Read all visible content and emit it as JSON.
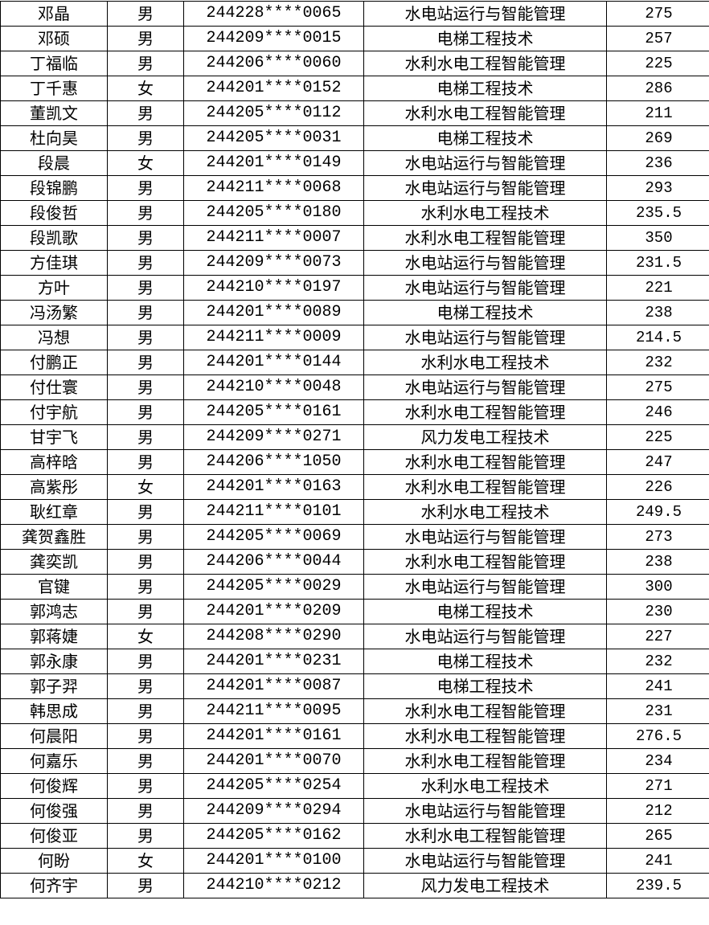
{
  "table": {
    "rows": [
      [
        "邓晶",
        "男",
        "244228****0065",
        "水电站运行与智能管理",
        "275"
      ],
      [
        "邓硕",
        "男",
        "244209****0015",
        "电梯工程技术",
        "257"
      ],
      [
        "丁福临",
        "男",
        "244206****0060",
        "水利水电工程智能管理",
        "225"
      ],
      [
        "丁千惠",
        "女",
        "244201****0152",
        "电梯工程技术",
        "286"
      ],
      [
        "董凯文",
        "男",
        "244205****0112",
        "水利水电工程智能管理",
        "211"
      ],
      [
        "杜向昊",
        "男",
        "244205****0031",
        "电梯工程技术",
        "269"
      ],
      [
        "段晨",
        "女",
        "244201****0149",
        "水电站运行与智能管理",
        "236"
      ],
      [
        "段锦鹏",
        "男",
        "244211****0068",
        "水电站运行与智能管理",
        "293"
      ],
      [
        "段俊哲",
        "男",
        "244205****0180",
        "水利水电工程技术",
        "235.5"
      ],
      [
        "段凯歌",
        "男",
        "244211****0007",
        "水利水电工程智能管理",
        "350"
      ],
      [
        "方佳琪",
        "男",
        "244209****0073",
        "水电站运行与智能管理",
        "231.5"
      ],
      [
        "方叶",
        "男",
        "244210****0197",
        "水电站运行与智能管理",
        "221"
      ],
      [
        "冯汤繁",
        "男",
        "244201****0089",
        "电梯工程技术",
        "238"
      ],
      [
        "冯想",
        "男",
        "244211****0009",
        "水电站运行与智能管理",
        "214.5"
      ],
      [
        "付鹏正",
        "男",
        "244201****0144",
        "水利水电工程技术",
        "232"
      ],
      [
        "付仕寰",
        "男",
        "244210****0048",
        "水电站运行与智能管理",
        "275"
      ],
      [
        "付宇航",
        "男",
        "244205****0161",
        "水利水电工程智能管理",
        "246"
      ],
      [
        "甘宇飞",
        "男",
        "244209****0271",
        "风力发电工程技术",
        "225"
      ],
      [
        "高梓晗",
        "男",
        "244206****1050",
        "水利水电工程智能管理",
        "247"
      ],
      [
        "高紫彤",
        "女",
        "244201****0163",
        "水利水电工程智能管理",
        "226"
      ],
      [
        "耿红章",
        "男",
        "244211****0101",
        "水利水电工程技术",
        "249.5"
      ],
      [
        "龚贺鑫胜",
        "男",
        "244205****0069",
        "水电站运行与智能管理",
        "273"
      ],
      [
        "龚奕凯",
        "男",
        "244206****0044",
        "水利水电工程智能管理",
        "238"
      ],
      [
        "官键",
        "男",
        "244205****0029",
        "水电站运行与智能管理",
        "300"
      ],
      [
        "郭鸿志",
        "男",
        "244201****0209",
        "电梯工程技术",
        "230"
      ],
      [
        "郭蒋婕",
        "女",
        "244208****0290",
        "水电站运行与智能管理",
        "227"
      ],
      [
        "郭永康",
        "男",
        "244201****0231",
        "电梯工程技术",
        "232"
      ],
      [
        "郭子羿",
        "男",
        "244201****0087",
        "电梯工程技术",
        "241"
      ],
      [
        "韩思成",
        "男",
        "244211****0095",
        "水利水电工程智能管理",
        "231"
      ],
      [
        "何晨阳",
        "男",
        "244201****0161",
        "水利水电工程智能管理",
        "276.5"
      ],
      [
        "何嘉乐",
        "男",
        "244201****0070",
        "水利水电工程智能管理",
        "234"
      ],
      [
        "何俊辉",
        "男",
        "244205****0254",
        "水利水电工程技术",
        "271"
      ],
      [
        "何俊强",
        "男",
        "244209****0294",
        "水电站运行与智能管理",
        "212"
      ],
      [
        "何俊亚",
        "男",
        "244205****0162",
        "水利水电工程智能管理",
        "265"
      ],
      [
        "何盼",
        "女",
        "244201****0100",
        "水电站运行与智能管理",
        "241"
      ],
      [
        "何齐宇",
        "男",
        "244210****0212",
        "风力发电工程技术",
        "239.5"
      ]
    ]
  }
}
